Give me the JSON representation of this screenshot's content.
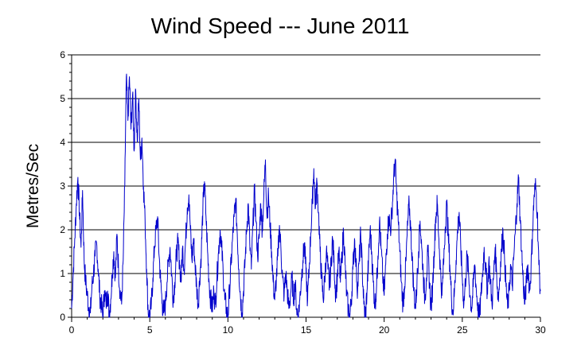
{
  "chart_data": {
    "type": "line",
    "title": "Wind Speed --- June 2011",
    "xlabel": "",
    "ylabel": "Metres/Sec",
    "xlim": [
      0,
      30
    ],
    "ylim": [
      0,
      6
    ],
    "x_ticks": [
      0,
      5,
      10,
      15,
      20,
      25,
      30
    ],
    "y_ticks": [
      0,
      1,
      2,
      3,
      4,
      5,
      6
    ],
    "grid": "horizontal",
    "series_color": "#0000cc",
    "series": [
      {
        "points": [
          [
            0.0,
            0.2
          ],
          [
            0.1,
            1.0
          ],
          [
            0.2,
            1.8
          ],
          [
            0.3,
            2.6
          ],
          [
            0.4,
            3.2
          ],
          [
            0.5,
            2.4
          ],
          [
            0.6,
            1.6
          ],
          [
            0.7,
            2.9
          ],
          [
            0.8,
            1.3
          ],
          [
            0.9,
            0.8
          ],
          [
            1.0,
            0.5
          ],
          [
            1.1,
            0.2
          ],
          [
            1.2,
            0.1
          ],
          [
            1.3,
            0.7
          ],
          [
            1.4,
            1.0
          ],
          [
            1.5,
            1.4
          ],
          [
            1.6,
            1.7
          ],
          [
            1.7,
            1.1
          ],
          [
            1.8,
            0.5
          ],
          [
            1.9,
            0.3
          ],
          [
            2.0,
            0.0
          ],
          [
            2.1,
            0.6
          ],
          [
            2.2,
            0.3
          ],
          [
            2.3,
            0.6
          ],
          [
            2.4,
            0.1
          ],
          [
            2.5,
            0.4
          ],
          [
            2.6,
            1.0
          ],
          [
            2.7,
            1.5
          ],
          [
            2.8,
            0.9
          ],
          [
            2.9,
            1.9
          ],
          [
            3.0,
            1.1
          ],
          [
            3.1,
            0.6
          ],
          [
            3.2,
            0.3
          ],
          [
            3.3,
            1.3
          ],
          [
            3.4,
            3.0
          ],
          [
            3.5,
            5.5
          ],
          [
            3.6,
            4.5
          ],
          [
            3.7,
            5.5
          ],
          [
            3.8,
            4.3
          ],
          [
            3.9,
            5.1
          ],
          [
            4.0,
            3.8
          ],
          [
            4.1,
            5.2
          ],
          [
            4.2,
            4.0
          ],
          [
            4.3,
            5.0
          ],
          [
            4.4,
            3.6
          ],
          [
            4.5,
            4.1
          ],
          [
            4.6,
            3.0
          ],
          [
            4.7,
            2.2
          ],
          [
            4.8,
            1.1
          ],
          [
            4.9,
            0.1
          ],
          [
            5.0,
            0.0
          ],
          [
            5.1,
            0.3
          ],
          [
            5.2,
            0.9
          ],
          [
            5.3,
            1.6
          ],
          [
            5.4,
            2.0
          ],
          [
            5.5,
            2.3
          ],
          [
            5.6,
            1.4
          ],
          [
            5.7,
            0.8
          ],
          [
            5.8,
            0.3
          ],
          [
            5.9,
            0.1
          ],
          [
            6.0,
            0.3
          ],
          [
            6.1,
            0.8
          ],
          [
            6.2,
            1.3
          ],
          [
            6.3,
            1.6
          ],
          [
            6.4,
            1.0
          ],
          [
            6.5,
            0.4
          ],
          [
            6.6,
            0.8
          ],
          [
            6.7,
            1.4
          ],
          [
            6.8,
            1.7
          ],
          [
            6.9,
            1.3
          ],
          [
            7.0,
            0.8
          ],
          [
            7.1,
            1.6
          ],
          [
            7.2,
            1.1
          ],
          [
            7.3,
            1.8
          ],
          [
            7.4,
            2.5
          ],
          [
            7.5,
            2.8
          ],
          [
            7.6,
            2.0
          ],
          [
            7.7,
            1.3
          ],
          [
            7.8,
            1.8
          ],
          [
            7.9,
            1.2
          ],
          [
            8.0,
            0.7
          ],
          [
            8.1,
            0.3
          ],
          [
            8.2,
            0.9
          ],
          [
            8.3,
            1.5
          ],
          [
            8.4,
            2.5
          ],
          [
            8.5,
            3.1
          ],
          [
            8.6,
            2.3
          ],
          [
            8.7,
            1.5
          ],
          [
            8.8,
            0.8
          ],
          [
            8.9,
            0.4
          ],
          [
            9.0,
            0.2
          ],
          [
            9.1,
            0.6
          ],
          [
            9.2,
            0.3
          ],
          [
            9.3,
            0.9
          ],
          [
            9.4,
            1.5
          ],
          [
            9.5,
            2.0
          ],
          [
            9.6,
            1.6
          ],
          [
            9.7,
            1.0
          ],
          [
            9.8,
            0.4
          ],
          [
            9.9,
            0.2
          ],
          [
            10.0,
            0.0
          ],
          [
            10.1,
            0.6
          ],
          [
            10.2,
            1.2
          ],
          [
            10.3,
            1.8
          ],
          [
            10.4,
            2.3
          ],
          [
            10.5,
            2.7
          ],
          [
            10.6,
            1.9
          ],
          [
            10.7,
            1.1
          ],
          [
            10.8,
            0.5
          ],
          [
            10.9,
            0.1
          ],
          [
            11.0,
            0.6
          ],
          [
            11.1,
            1.3
          ],
          [
            11.2,
            2.0
          ],
          [
            11.3,
            2.6
          ],
          [
            11.4,
            1.7
          ],
          [
            11.5,
            1.1
          ],
          [
            11.6,
            2.1
          ],
          [
            11.7,
            2.9
          ],
          [
            11.8,
            2.2
          ],
          [
            11.9,
            1.4
          ],
          [
            12.0,
            1.8
          ],
          [
            12.1,
            2.6
          ],
          [
            12.2,
            2.0
          ],
          [
            12.3,
            2.8
          ],
          [
            12.4,
            3.6
          ],
          [
            12.5,
            2.3
          ],
          [
            12.6,
            2.8
          ],
          [
            12.7,
            2.1
          ],
          [
            12.8,
            1.5
          ],
          [
            12.9,
            0.8
          ],
          [
            13.0,
            0.4
          ],
          [
            13.1,
            0.9
          ],
          [
            13.2,
            1.4
          ],
          [
            13.3,
            2.1
          ],
          [
            13.4,
            1.5
          ],
          [
            13.5,
            0.9
          ],
          [
            13.6,
            0.5
          ],
          [
            13.7,
            1.0
          ],
          [
            13.8,
            0.6
          ],
          [
            13.9,
            0.2
          ],
          [
            14.0,
            0.5
          ],
          [
            14.1,
            0.9
          ],
          [
            14.2,
            0.4
          ],
          [
            14.3,
            0.8
          ],
          [
            14.4,
            0.2
          ],
          [
            14.5,
            0.0
          ],
          [
            14.6,
            0.4
          ],
          [
            14.7,
            0.9
          ],
          [
            14.8,
            1.3
          ],
          [
            14.9,
            1.7
          ],
          [
            15.0,
            1.0
          ],
          [
            15.1,
            0.4
          ],
          [
            15.2,
            1.1
          ],
          [
            15.3,
            1.9
          ],
          [
            15.4,
            2.6
          ],
          [
            15.5,
            3.4
          ],
          [
            15.6,
            2.5
          ],
          [
            15.7,
            3.1
          ],
          [
            15.8,
            2.4
          ],
          [
            15.9,
            1.5
          ],
          [
            16.0,
            0.9
          ],
          [
            16.1,
            0.4
          ],
          [
            16.2,
            0.9
          ],
          [
            16.3,
            1.5
          ],
          [
            16.4,
            1.1
          ],
          [
            16.5,
            0.7
          ],
          [
            16.6,
            1.2
          ],
          [
            16.7,
            1.8
          ],
          [
            16.8,
            1.2
          ],
          [
            16.9,
            0.5
          ],
          [
            17.0,
            0.9
          ],
          [
            17.1,
            1.5
          ],
          [
            17.2,
            0.8
          ],
          [
            17.3,
            1.4
          ],
          [
            17.4,
            2.0
          ],
          [
            17.5,
            1.2
          ],
          [
            17.6,
            0.5
          ],
          [
            17.7,
            0.2
          ],
          [
            17.8,
            0.0
          ],
          [
            17.9,
            0.4
          ],
          [
            18.0,
            1.1
          ],
          [
            18.1,
            1.8
          ],
          [
            18.2,
            1.2
          ],
          [
            18.3,
            0.6
          ],
          [
            18.4,
            1.3
          ],
          [
            18.5,
            1.9
          ],
          [
            18.6,
            1.1
          ],
          [
            18.7,
            0.3
          ],
          [
            18.8,
            0.0
          ],
          [
            18.9,
            0.6
          ],
          [
            19.0,
            1.3
          ],
          [
            19.1,
            2.0
          ],
          [
            19.2,
            1.5
          ],
          [
            19.3,
            0.8
          ],
          [
            19.4,
            0.3
          ],
          [
            19.5,
            0.6
          ],
          [
            19.6,
            1.4
          ],
          [
            19.7,
            2.2
          ],
          [
            19.8,
            1.6
          ],
          [
            19.9,
            1.0
          ],
          [
            20.0,
            0.5
          ],
          [
            20.1,
            1.2
          ],
          [
            20.2,
            1.9
          ],
          [
            20.3,
            2.3
          ],
          [
            20.4,
            2.0
          ],
          [
            20.5,
            2.4
          ],
          [
            20.6,
            3.1
          ],
          [
            20.7,
            3.6
          ],
          [
            20.8,
            2.8
          ],
          [
            20.9,
            2.2
          ],
          [
            21.0,
            1.5
          ],
          [
            21.1,
            0.8
          ],
          [
            21.2,
            0.3
          ],
          [
            21.3,
            0.7
          ],
          [
            21.4,
            1.3
          ],
          [
            21.5,
            2.1
          ],
          [
            21.6,
            2.6
          ],
          [
            21.7,
            2.0
          ],
          [
            21.8,
            1.3
          ],
          [
            21.9,
            0.6
          ],
          [
            22.0,
            0.2
          ],
          [
            22.1,
            0.8
          ],
          [
            22.2,
            1.5
          ],
          [
            22.3,
            2.2
          ],
          [
            22.4,
            1.6
          ],
          [
            22.5,
            1.0
          ],
          [
            22.6,
            0.4
          ],
          [
            22.7,
            0.9
          ],
          [
            22.8,
            1.5
          ],
          [
            22.9,
            0.8
          ],
          [
            23.0,
            0.2
          ],
          [
            23.1,
            0.7
          ],
          [
            23.2,
            1.5
          ],
          [
            23.3,
            2.3
          ],
          [
            23.4,
            2.6
          ],
          [
            23.5,
            1.8
          ],
          [
            23.6,
            1.1
          ],
          [
            23.7,
            0.5
          ],
          [
            23.8,
            1.2
          ],
          [
            23.9,
            2.0
          ],
          [
            24.0,
            2.6
          ],
          [
            24.1,
            1.9
          ],
          [
            24.2,
            1.2
          ],
          [
            24.3,
            0.5
          ],
          [
            24.4,
            0.1
          ],
          [
            24.5,
            0.6
          ],
          [
            24.6,
            1.3
          ],
          [
            24.7,
            2.0
          ],
          [
            24.8,
            2.4
          ],
          [
            24.9,
            1.6
          ],
          [
            25.0,
            0.9
          ],
          [
            25.1,
            0.3
          ],
          [
            25.2,
            0.8
          ],
          [
            25.3,
            1.4
          ],
          [
            25.4,
            1.0
          ],
          [
            25.5,
            0.5
          ],
          [
            25.6,
            0.2
          ],
          [
            25.7,
            0.7
          ],
          [
            25.8,
            1.2
          ],
          [
            25.9,
            0.6
          ],
          [
            26.0,
            0.2
          ],
          [
            26.1,
            0.0
          ],
          [
            26.2,
            0.5
          ],
          [
            26.3,
            1.0
          ],
          [
            26.4,
            1.6
          ],
          [
            26.5,
            1.1
          ],
          [
            26.6,
            0.6
          ],
          [
            26.7,
            1.3
          ],
          [
            26.8,
            0.8
          ],
          [
            26.9,
            0.3
          ],
          [
            27.0,
            0.9
          ],
          [
            27.1,
            1.6
          ],
          [
            27.2,
            1.0
          ],
          [
            27.3,
            0.4
          ],
          [
            27.4,
            0.9
          ],
          [
            27.5,
            1.5
          ],
          [
            27.6,
            2.0
          ],
          [
            27.7,
            1.4
          ],
          [
            27.8,
            0.7
          ],
          [
            27.9,
            0.2
          ],
          [
            28.0,
            0.6
          ],
          [
            28.1,
            1.2
          ],
          [
            28.2,
            0.7
          ],
          [
            28.3,
            1.4
          ],
          [
            28.4,
            2.0
          ],
          [
            28.5,
            2.6
          ],
          [
            28.6,
            3.2
          ],
          [
            28.7,
            2.3
          ],
          [
            28.8,
            1.5
          ],
          [
            28.9,
            0.8
          ],
          [
            29.0,
            0.3
          ],
          [
            29.1,
            0.8
          ],
          [
            29.2,
            1.2
          ],
          [
            29.3,
            0.6
          ],
          [
            29.4,
            1.1
          ],
          [
            29.5,
            2.0
          ],
          [
            29.6,
            2.8
          ],
          [
            29.7,
            3.0
          ],
          [
            29.8,
            2.4
          ],
          [
            29.9,
            1.2
          ],
          [
            30.0,
            0.6
          ]
        ]
      }
    ]
  }
}
